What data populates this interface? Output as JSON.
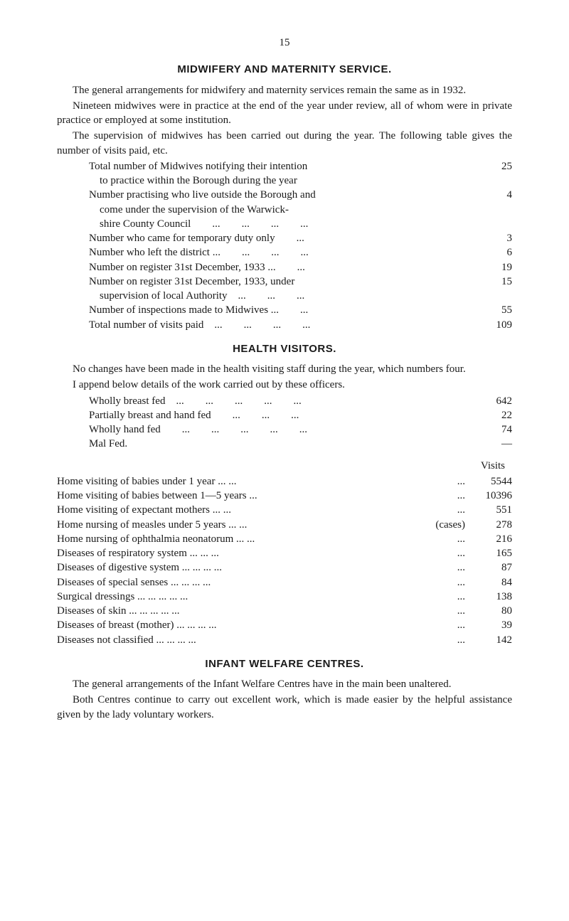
{
  "pageNumber": "15",
  "sections": {
    "midwifery": {
      "title": "MIDWIFERY AND MATERNITY SERVICE.",
      "p1": "The general arrangements for midwifery and maternity services remain the same as in 1932.",
      "p2": "Nineteen midwives were in practice at the end of the year under review, all of whom were in private practice or employed at some institution.",
      "p3": "The supervision of midwives has been carried out during the year.  The following table gives the number of visits paid, etc.",
      "stats": [
        {
          "label": "Total number of Midwives notifying their intention\n    to practice within the Borough during the year",
          "value": "25"
        },
        {
          "label": "Number practising who live outside the Borough and\n    come under the supervision of the Warwick-\n    shire County Council        ...        ...        ...        ...",
          "value": "4"
        },
        {
          "label": "Number who came for temporary duty only        ...",
          "value": "3"
        },
        {
          "label": "Number who left the district ...        ...        ...        ...",
          "value": "6"
        },
        {
          "label": "Number on register 31st December, 1933 ...        ...",
          "value": "19"
        },
        {
          "label": "Number on register 31st December, 1933, under\n    supervision of local Authority    ...        ...        ...",
          "value": "15"
        },
        {
          "label": "Number of inspections made to Midwives ...        ...",
          "value": "55"
        },
        {
          "label": "Total number of visits paid    ...        ...        ...        ...",
          "value": "109"
        }
      ]
    },
    "health": {
      "title": "HEALTH VISITORS.",
      "p1": "No changes have been made in the health visiting staff during the year, which numbers four.",
      "p2": "I append below details of the work carried out by these officers.",
      "stats": [
        {
          "label": "Wholly breast fed    ...        ...        ...        ...        ...",
          "value": "642"
        },
        {
          "label": "Partially breast and hand fed        ...        ...        ...",
          "value": "22"
        },
        {
          "label": "Wholly hand fed        ...        ...        ...        ...        ...",
          "value": "74"
        },
        {
          "label": "Mal Fed.",
          "value": "—"
        }
      ]
    },
    "visits": {
      "header": "Visits",
      "rows": [
        {
          "label": "Home visiting of babies under 1 year        ...        ...",
          "mid": "...",
          "value": "5544"
        },
        {
          "label": "Home visiting of babies between 1—5 years        ...",
          "mid": "...",
          "value": "10396"
        },
        {
          "label": "Home visiting of expectant mothers        ...        ...",
          "mid": "...",
          "value": "551"
        },
        {
          "label": "Home nursing of measles under 5 years ...        ...",
          "mid": "(cases)",
          "value": "278"
        },
        {
          "label": "Home nursing of ophthalmia neonatorum ...        ...",
          "mid": "...",
          "value": "216"
        },
        {
          "label": "Diseases of respiratory system        ...        ...        ...",
          "mid": "...",
          "value": "165"
        },
        {
          "label": "Diseases of digestive system ...        ...        ...        ...",
          "mid": "...",
          "value": "87"
        },
        {
          "label": "Diseases of special senses        ...        ...        ...        ...",
          "mid": "...",
          "value": "84"
        },
        {
          "label": "Surgical dressings        ...        ...        ...        ...        ...",
          "mid": "...",
          "value": "138"
        },
        {
          "label": "Diseases of skin            ...        ...        ...        ...        ...",
          "mid": "...",
          "value": "80"
        },
        {
          "label": "Diseases of breast (mother)    ...        ...        ...        ...",
          "mid": "...",
          "value": "39"
        },
        {
          "label": "Diseases not classified            ...        ...        ...        ...",
          "mid": "...",
          "value": "142"
        }
      ]
    },
    "infant": {
      "title": "INFANT WELFARE CENTRES.",
      "p1": "The general arrangements of the Infant Welfare Centres have in the main been unaltered.",
      "p2": "Both Centres continue to carry out excellent work, which is made easier by the helpful assistance given by the lady voluntary workers."
    }
  }
}
